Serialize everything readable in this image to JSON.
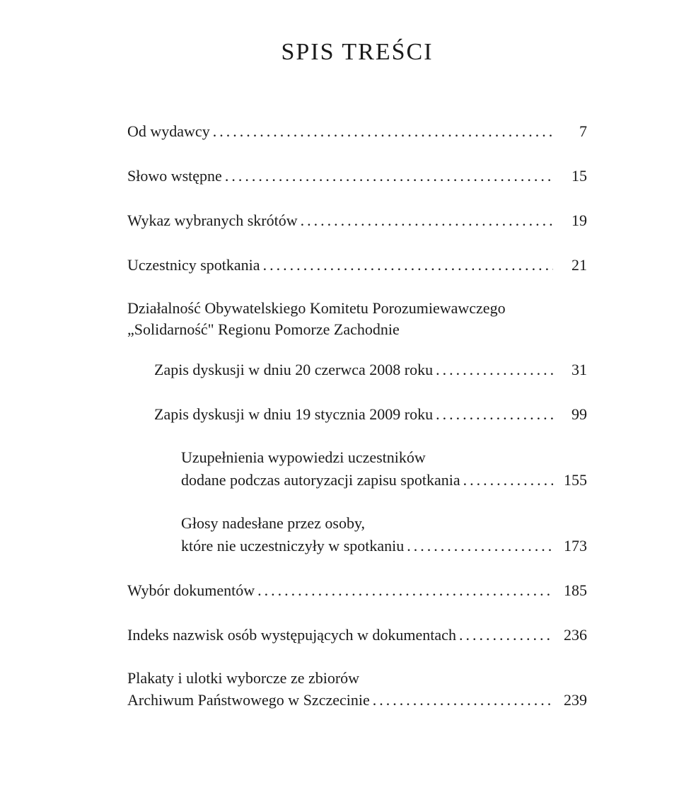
{
  "title": "SPIS TREŚCI",
  "entries": {
    "e1": {
      "label": "Od wydawcy",
      "page": "7"
    },
    "e2": {
      "label": "Słowo wstępne",
      "page": "15"
    },
    "e3": {
      "label": "Wykaz wybranych skrótów",
      "page": "19"
    },
    "e4": {
      "label": "Uczestnicy spotkania",
      "page": "21"
    },
    "e5": {
      "label1": "Działalność Obywatelskiego Komitetu Porozumiewawczego",
      "label2": "„Solidarność\" Regionu Pomorze Zachodnie"
    },
    "e6": {
      "label": "Zapis dyskusji w dniu 20 czerwca 2008 roku",
      "page": "31"
    },
    "e7": {
      "label": "Zapis dyskusji w dniu 19 stycznia 2009 roku",
      "page": "99"
    },
    "e8": {
      "label1": "Uzupełnienia wypowiedzi uczestników",
      "label2": "dodane podczas autoryzacji zapisu spotkania",
      "page": "155"
    },
    "e9": {
      "label1": "Głosy nadesłane przez osoby,",
      "label2": "które nie uczestniczyły w spotkaniu",
      "page": "173"
    },
    "e10": {
      "label": "Wybór dokumentów",
      "page": "185"
    },
    "e11": {
      "label": "Indeks nazwisk osób występujących w dokumentach",
      "page": "236"
    },
    "e12": {
      "label1": "Plakaty i ulotki wyborcze ze zbiorów",
      "label2": "Archiwum Państwowego w Szczecinie",
      "page": "239"
    }
  }
}
